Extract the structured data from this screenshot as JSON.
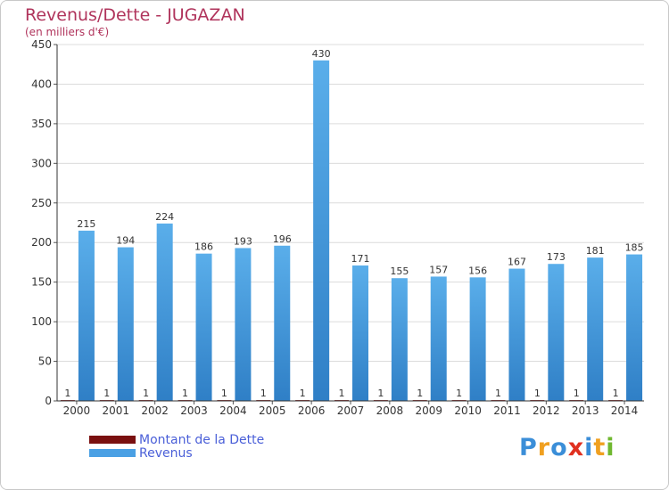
{
  "colors": {
    "title": "#b0345c",
    "revenus": "#4aa0e4",
    "revenus_dark": "#2a78c0",
    "dette": "#7a1010",
    "axis": "#333333",
    "grid": "#d0d0d0",
    "legend_text": "#4a5fd8"
  },
  "header": {
    "title": "Revenus/Dette - JUGAZAN",
    "subtitle": "(en milliers d'€)"
  },
  "legend": {
    "dette_label": "Montant de la Dette",
    "revenus_label": "Revenus"
  },
  "logo": {
    "letters": [
      "P",
      "r",
      "o",
      "x",
      "i",
      "t",
      "i"
    ],
    "colors": [
      "#3b8ed8",
      "#f0a020",
      "#3b8ed8",
      "#e03020",
      "#3b8ed8",
      "#f0a020",
      "#70b830"
    ]
  },
  "chart_data": {
    "type": "bar",
    "title": "Revenus/Dette - JUGAZAN",
    "subtitle": "(en milliers d'€)",
    "categories": [
      "2000",
      "2001",
      "2002",
      "2003",
      "2004",
      "2005",
      "2006",
      "2007",
      "2008",
      "2009",
      "2010",
      "2011",
      "2012",
      "2013",
      "2014"
    ],
    "series": [
      {
        "name": "Montant de la Dette",
        "values": [
          1,
          1,
          1,
          1,
          1,
          1,
          1,
          1,
          1,
          1,
          1,
          1,
          1,
          1,
          1
        ]
      },
      {
        "name": "Revenus",
        "values": [
          215,
          194,
          224,
          186,
          193,
          196,
          430,
          171,
          155,
          157,
          156,
          167,
          173,
          181,
          185
        ]
      }
    ],
    "ylim": [
      0,
      450
    ],
    "yticks": [
      0,
      50,
      100,
      150,
      200,
      250,
      300,
      350,
      400,
      450
    ],
    "grid": true,
    "legend_position": "bottom-left"
  }
}
